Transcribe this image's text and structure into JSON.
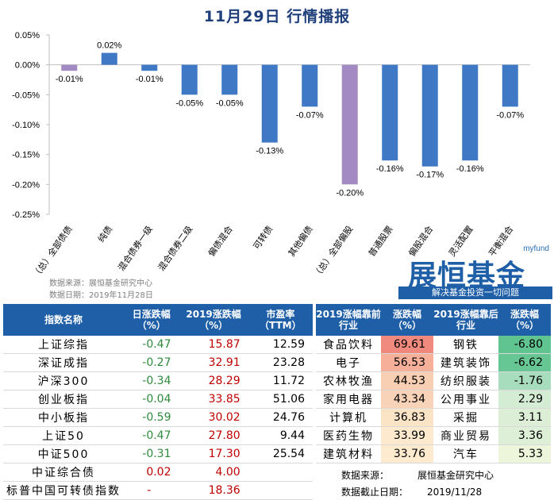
{
  "title": "11月29日  行情播报",
  "chart_data": {
    "type": "bar",
    "categories": [
      "（总）全部债债",
      "纯债",
      "混合债券一级",
      "混合债券二级",
      "偏债混合",
      "可转债",
      "其他偏债",
      "（总）全部偏股",
      "普通股票",
      "偏股混合",
      "灵活配置",
      "平衡混合"
    ],
    "values": [
      -0.01,
      0.02,
      -0.01,
      -0.05,
      -0.05,
      -0.13,
      -0.07,
      -0.2,
      -0.16,
      -0.17,
      -0.16,
      -0.07
    ],
    "data_labels": [
      "-0.01%",
      "0.02%",
      "-0.01%",
      "-0.05%",
      "-0.05%",
      "-0.13%",
      "-0.07%",
      "-0.20%",
      "-0.16%",
      "-0.17%",
      "-0.16%",
      "-0.07%"
    ],
    "bar_colors": [
      "#a48ac2",
      "#3f78c4",
      "#3f78c4",
      "#3f78c4",
      "#3f78c4",
      "#3f78c4",
      "#3f78c4",
      "#a48ac2",
      "#3f78c4",
      "#3f78c4",
      "#3f78c4",
      "#3f78c4"
    ],
    "y_ticks": [
      0.05,
      0.0,
      -0.05,
      -0.1,
      -0.15,
      -0.2,
      -0.25
    ],
    "y_tick_labels": [
      "0.05%",
      "0.00%",
      "-0.05%",
      "-0.10%",
      "-0.15%",
      "-0.20%",
      "-0.25%"
    ],
    "ylim": [
      -0.25,
      0.05
    ],
    "grid": false
  },
  "source_note": {
    "source": "数据来源：展恒基金研究中心",
    "date": "数据日期：2019年11月28日"
  },
  "logo": {
    "myfund": "myfund",
    "brand": "展恒基金",
    "slogan": "解决基金投资一切问题"
  },
  "index_table": {
    "headers": [
      "指数名称",
      "日涨跌幅（%）",
      "2019涨跌幅（%）",
      "市盈率（TTM）"
    ],
    "rows": [
      {
        "name": "上证综指",
        "daily": "-0.47",
        "ytd": "15.87",
        "pe": "12.59"
      },
      {
        "name": "深证成指",
        "daily": "-0.27",
        "ytd": "32.91",
        "pe": "23.28"
      },
      {
        "name": "沪深300",
        "daily": "-0.34",
        "ytd": "28.29",
        "pe": "11.72"
      },
      {
        "name": "创业板指",
        "daily": "-0.04",
        "ytd": "33.85",
        "pe": "51.06"
      },
      {
        "name": "中小板指",
        "daily": "-0.59",
        "ytd": "30.02",
        "pe": "24.76"
      },
      {
        "name": "上证50",
        "daily": "-0.47",
        "ytd": "27.80",
        "pe": "9.44"
      },
      {
        "name": "中证500",
        "daily": "-0.31",
        "ytd": "17.30",
        "pe": "25.54"
      },
      {
        "name": "中证综合债",
        "daily": "0.02",
        "ytd": "4.00",
        "pe": ""
      },
      {
        "name": "标普中国可转债指数",
        "daily": "-",
        "ytd": "18.36",
        "pe": ""
      }
    ]
  },
  "industry_table": {
    "headers": [
      "2019涨幅靠前行业",
      "涨跌幅（%）",
      "2019涨幅靠后行业",
      "涨跌幅（%）"
    ],
    "rows": [
      {
        "top": "食品饮料",
        "top_val": "69.61",
        "top_color": "#f08a7e",
        "bot": "钢铁",
        "bot_val": "-6.80",
        "bot_color": "#5fc490"
      },
      {
        "top": "电子",
        "top_val": "56.53",
        "top_color": "#f6b09a",
        "bot": "建筑装饰",
        "bot_val": "-6.62",
        "bot_color": "#66c795"
      },
      {
        "top": "农林牧渔",
        "top_val": "44.53",
        "top_color": "#f8cfb3",
        "bot": "纺织服装",
        "bot_val": "-1.76",
        "bot_color": "#a7ddbc"
      },
      {
        "top": "家用电器",
        "top_val": "43.34",
        "top_color": "#f9d3b7",
        "bot": "公用事业",
        "bot_val": "2.29",
        "bot_color": "#d4ecd4"
      },
      {
        "top": "计算机",
        "top_val": "36.83",
        "top_color": "#fbe3c6",
        "bot": "采掘",
        "bot_val": "3.11",
        "bot_color": "#dcefd6"
      },
      {
        "top": "医药生物",
        "top_val": "33.99",
        "top_color": "#fde9cd",
        "bot": "商业贸易",
        "bot_val": "3.36",
        "bot_color": "#deefd7"
      },
      {
        "top": "建筑材料",
        "top_val": "33.76",
        "top_color": "#fdeacf",
        "bot": "汽车",
        "bot_val": "5.33",
        "bot_color": "#edf5da"
      }
    ]
  },
  "footer": {
    "source_label": "数据来源：",
    "source_value": "展恒基金研究中心",
    "date_label": "数据截止日期：",
    "date_value": "2019/11/28"
  }
}
